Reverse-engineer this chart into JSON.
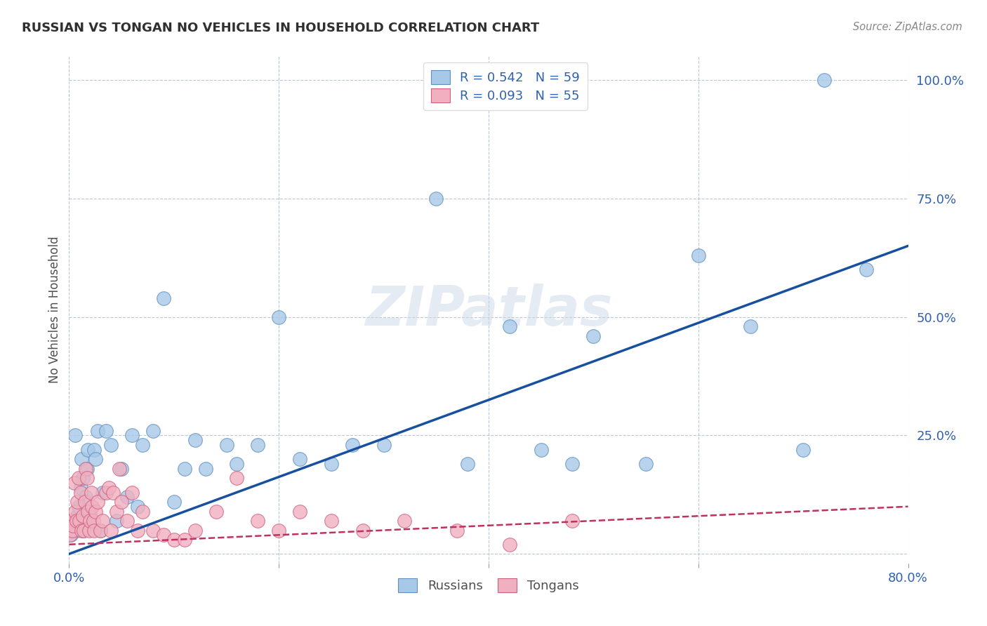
{
  "title": "RUSSIAN VS TONGAN NO VEHICLES IN HOUSEHOLD CORRELATION CHART",
  "source": "Source: ZipAtlas.com",
  "ylabel": "No Vehicles in Household",
  "watermark": "ZIPatlas",
  "xlim": [
    0.0,
    0.8
  ],
  "ylim": [
    -0.02,
    1.05
  ],
  "xticks": [
    0.0,
    0.2,
    0.4,
    0.6,
    0.8
  ],
  "xticklabels": [
    "0.0%",
    "",
    "",
    "",
    "80.0%"
  ],
  "ytick_positions": [
    0.0,
    0.25,
    0.5,
    0.75,
    1.0
  ],
  "yticklabels": [
    "",
    "25.0%",
    "50.0%",
    "75.0%",
    "100.0%"
  ],
  "russian_R": 0.542,
  "russian_N": 59,
  "tongan_R": 0.093,
  "tongan_N": 55,
  "russian_color": "#a8c8e8",
  "russian_edge": "#6090c0",
  "tongan_color": "#f0b0c0",
  "tongan_edge": "#d06080",
  "trend_russian_color": "#1850a0",
  "trend_tongan_color": "#c03060",
  "background_color": "#ffffff",
  "grid_color": "#b8c8d8",
  "russian_x": [
    0.002,
    0.003,
    0.004,
    0.005,
    0.006,
    0.007,
    0.008,
    0.009,
    0.01,
    0.011,
    0.012,
    0.013,
    0.014,
    0.015,
    0.016,
    0.017,
    0.018,
    0.019,
    0.02,
    0.022,
    0.024,
    0.025,
    0.027,
    0.03,
    0.032,
    0.035,
    0.04,
    0.045,
    0.05,
    0.055,
    0.06,
    0.065,
    0.07,
    0.08,
    0.09,
    0.1,
    0.11,
    0.12,
    0.13,
    0.15,
    0.16,
    0.18,
    0.2,
    0.22,
    0.25,
    0.27,
    0.3,
    0.35,
    0.38,
    0.42,
    0.45,
    0.48,
    0.5,
    0.55,
    0.6,
    0.65,
    0.7,
    0.72,
    0.76
  ],
  "russian_y": [
    0.04,
    0.06,
    0.05,
    0.07,
    0.25,
    0.05,
    0.08,
    0.1,
    0.06,
    0.14,
    0.2,
    0.16,
    0.05,
    0.08,
    0.12,
    0.18,
    0.22,
    0.08,
    0.09,
    0.06,
    0.22,
    0.2,
    0.26,
    0.05,
    0.13,
    0.26,
    0.23,
    0.07,
    0.18,
    0.12,
    0.25,
    0.1,
    0.23,
    0.26,
    0.54,
    0.11,
    0.18,
    0.24,
    0.18,
    0.23,
    0.19,
    0.23,
    0.5,
    0.2,
    0.19,
    0.23,
    0.23,
    0.75,
    0.19,
    0.48,
    0.22,
    0.19,
    0.46,
    0.19,
    0.63,
    0.48,
    0.22,
    1.0,
    0.6
  ],
  "tongan_x": [
    0.001,
    0.002,
    0.003,
    0.004,
    0.005,
    0.006,
    0.007,
    0.008,
    0.009,
    0.01,
    0.011,
    0.012,
    0.013,
    0.014,
    0.015,
    0.016,
    0.017,
    0.018,
    0.019,
    0.02,
    0.021,
    0.022,
    0.023,
    0.024,
    0.025,
    0.027,
    0.03,
    0.032,
    0.035,
    0.038,
    0.04,
    0.042,
    0.045,
    0.048,
    0.05,
    0.055,
    0.06,
    0.065,
    0.07,
    0.08,
    0.09,
    0.1,
    0.11,
    0.12,
    0.14,
    0.16,
    0.18,
    0.2,
    0.22,
    0.25,
    0.28,
    0.32,
    0.37,
    0.42,
    0.48
  ],
  "tongan_y": [
    0.04,
    0.07,
    0.05,
    0.06,
    0.15,
    0.09,
    0.07,
    0.11,
    0.16,
    0.07,
    0.13,
    0.05,
    0.08,
    0.05,
    0.11,
    0.18,
    0.16,
    0.09,
    0.05,
    0.07,
    0.13,
    0.1,
    0.07,
    0.05,
    0.09,
    0.11,
    0.05,
    0.07,
    0.13,
    0.14,
    0.05,
    0.13,
    0.09,
    0.18,
    0.11,
    0.07,
    0.13,
    0.05,
    0.09,
    0.05,
    0.04,
    0.03,
    0.03,
    0.05,
    0.09,
    0.16,
    0.07,
    0.05,
    0.09,
    0.07,
    0.05,
    0.07,
    0.05,
    0.02,
    0.07
  ],
  "trend_russian_x0": 0.0,
  "trend_russian_y0": 0.0,
  "trend_russian_x1": 0.8,
  "trend_russian_y1": 0.65,
  "trend_tongan_x0": 0.0,
  "trend_tongan_y0": 0.02,
  "trend_tongan_x1": 0.8,
  "trend_tongan_y1": 0.1
}
